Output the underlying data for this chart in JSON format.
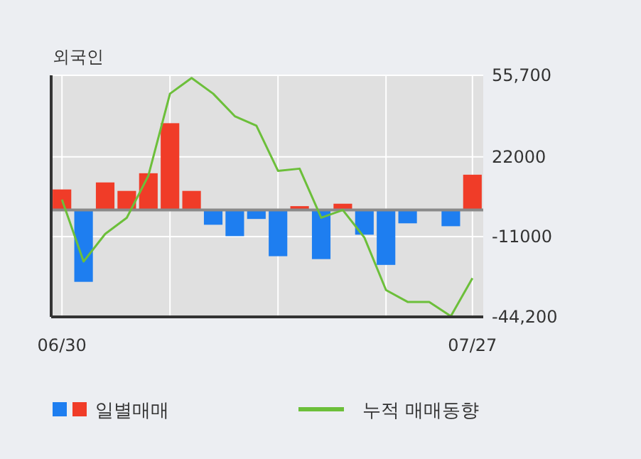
{
  "chart_data": {
    "type": "bar",
    "title": "외국인",
    "categories": [
      "06/30",
      null,
      null,
      null,
      null,
      null,
      null,
      null,
      null,
      null,
      null,
      null,
      null,
      null,
      null,
      null,
      null,
      null,
      null,
      "07/27"
    ],
    "series": [
      {
        "name": "일별매매",
        "colors": [
          "#f03c28",
          "#1e7ef0",
          "#f03c28",
          "#f03c28",
          "#f03c28",
          "#f03c28",
          "#f03c28",
          "#1e7ef0",
          "#1e7ef0",
          "#1e7ef0",
          "#1e7ef0",
          "#f03c28",
          "#1e7ef0",
          "#f03c28",
          "#1e7ef0",
          "#1e7ef0",
          "#1e7ef0",
          "#1e7ef0",
          "#1e7ef0",
          "#f03c28"
        ],
        "values": [
          8500,
          -29700,
          11400,
          7900,
          15200,
          35900,
          7900,
          -6100,
          -10800,
          -3700,
          -19100,
          1600,
          -20300,
          2600,
          -10200,
          -22700,
          -5500,
          0,
          -6700,
          14600
        ]
      },
      {
        "name": "누적 매매동향",
        "type": "line",
        "color": "#6cbf3a",
        "values": [
          4300,
          -21300,
          -9900,
          -3200,
          14200,
          48100,
          54600,
          48100,
          38800,
          34900,
          16200,
          17100,
          -3200,
          0,
          -11400,
          -33100,
          -38000,
          -38000,
          -43900,
          -28200
        ]
      }
    ],
    "ylim": [
      -44200,
      55700
    ],
    "yticks": [
      {
        "value": 55700,
        "label": "55,700"
      },
      22000,
      -11000,
      {
        "value": -44200,
        "label": "-44,200"
      }
    ],
    "grid": true,
    "legend": "bottom"
  }
}
